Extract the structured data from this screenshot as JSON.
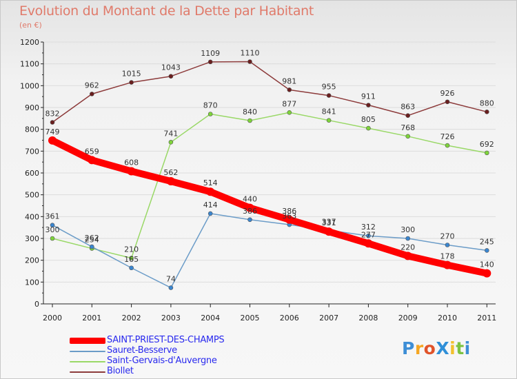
{
  "header": {
    "title": "Evolution du Montant de la Dette par Habitant",
    "subtitle": "(en €)"
  },
  "colors": {
    "title": "#e07a6a",
    "axis": "#222222",
    "grid": "#dcdcdc",
    "legend_text": "#2a2aee"
  },
  "logo": {
    "text": "ProXiti",
    "letters": [
      "P",
      "r",
      "o",
      "X",
      "i",
      "t",
      "i"
    ],
    "letter_colors": [
      "#3d8ed6",
      "#f5a623",
      "#e0532a",
      "#2f8fd8",
      "#f2c12e",
      "#7cc242",
      "#3d8ed6"
    ]
  },
  "chart_data": {
    "type": "line",
    "title": "Evolution du Montant de la Dette par Habitant",
    "subtitle": "(en €)",
    "x": [
      "2000",
      "2001",
      "2002",
      "2003",
      "2004",
      "2005",
      "2006",
      "2007",
      "2008",
      "2009",
      "2010",
      "2011"
    ],
    "ylim": [
      0,
      1200
    ],
    "yticks": [
      0,
      100,
      200,
      300,
      400,
      500,
      600,
      700,
      800,
      900,
      1000,
      1100,
      1200
    ],
    "grid": "horizontal",
    "legend_position": "bottom-left",
    "series": [
      {
        "name": "SAINT-PRIEST-DES-CHAMPS",
        "color": "#ff0000",
        "emphasis": "thick",
        "values": [
          749,
          659,
          608,
          562,
          514,
          440,
          386,
          331,
          277,
          220,
          178,
          140
        ]
      },
      {
        "name": "Sauret-Besserve",
        "color": "#6b9cc8",
        "marker": "#3a86d0",
        "values": [
          361,
          262,
          165,
          74,
          414,
          386,
          363,
          337,
          312,
          300,
          270,
          245
        ]
      },
      {
        "name": "Saint-Gervais-d'Auvergne",
        "color": "#99d866",
        "marker": "#7ed43a",
        "values": [
          300,
          254,
          210,
          741,
          870,
          840,
          877,
          841,
          805,
          768,
          726,
          692
        ]
      },
      {
        "name": "Biollet",
        "color": "#8c3a3a",
        "marker": "#6a1e1e",
        "values": [
          832,
          962,
          1015,
          1043,
          1109,
          1110,
          981,
          955,
          911,
          863,
          926,
          880
        ]
      }
    ]
  }
}
